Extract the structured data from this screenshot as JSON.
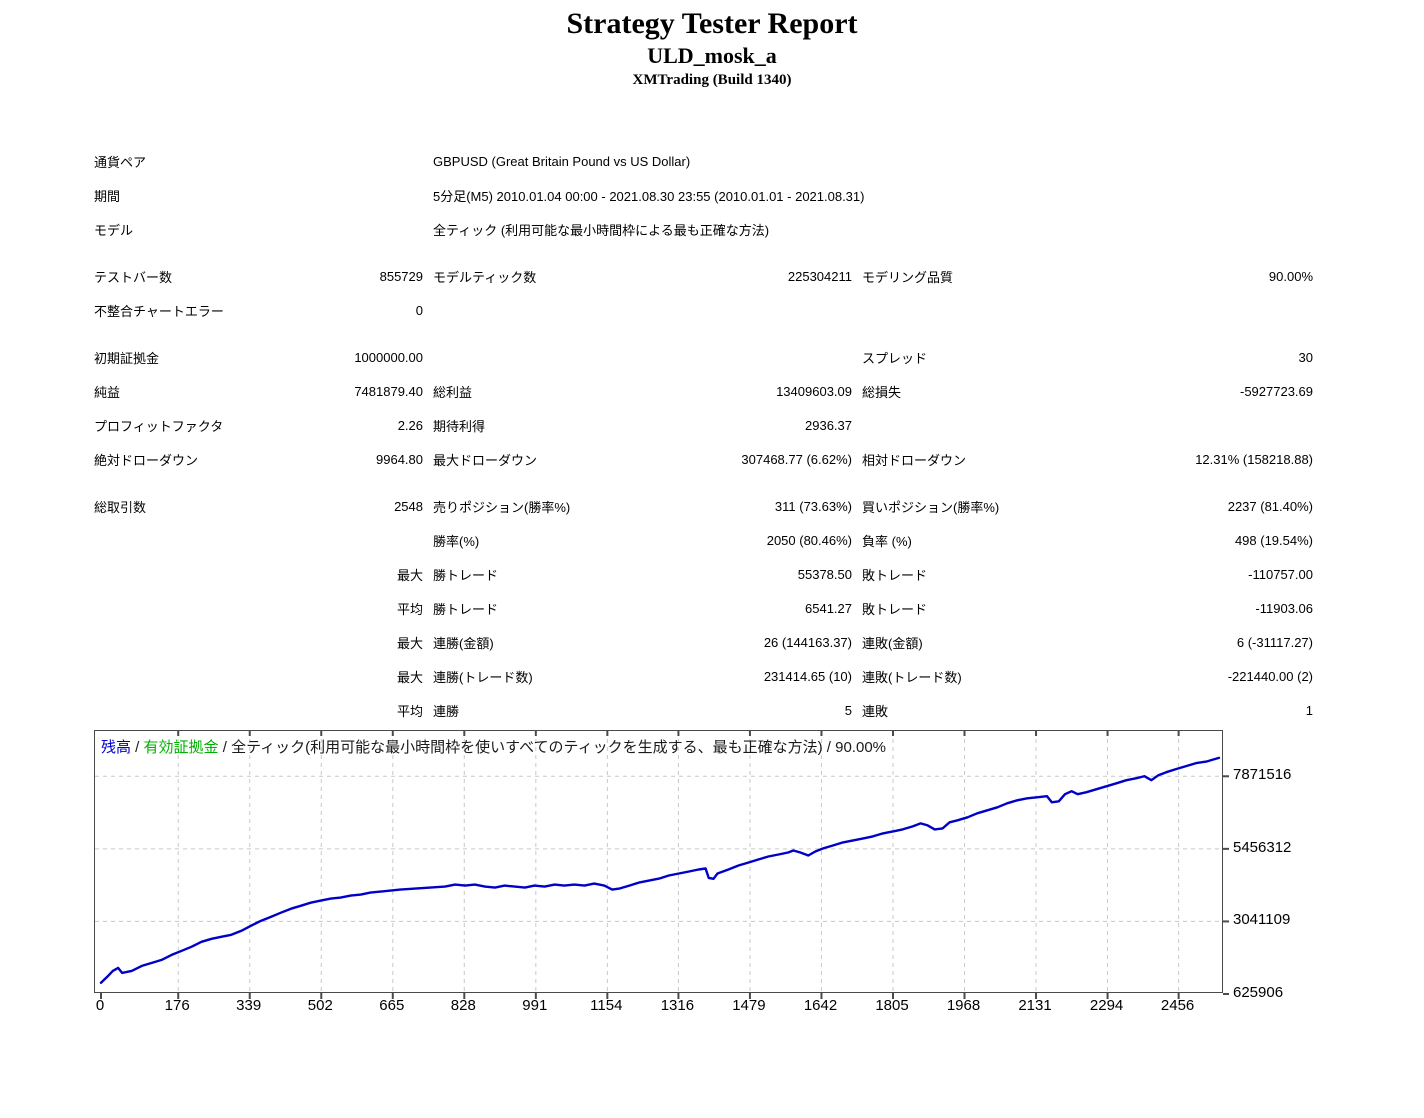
{
  "header": {
    "title": "Strategy Tester Report",
    "ea_name": "ULD_mosk_a",
    "broker": "XMTrading (Build 1340)"
  },
  "table": {
    "rows": [
      {
        "c1l": "通貨ペア",
        "wide": "GBPUSD (Great Britain Pound vs US Dollar)"
      },
      {
        "c1l": "期間",
        "wide": "5分足(M5) 2010.01.04 00:00 - 2021.08.30 23:55 (2010.01.01 - 2021.08.31)"
      },
      {
        "c1l": "モデル",
        "wide": "全ティック (利用可能な最小時間枠による最も正確な方法)"
      },
      {
        "c1l": "テストバー数",
        "c1v": "855729",
        "c2l": "モデルティック数",
        "c2v": "225304211",
        "c3l": "モデリング品質",
        "c3v": "90.00%"
      },
      {
        "c1l": "不整合チャートエラー",
        "c1v": "0",
        "c2l": "",
        "c2v": "",
        "c3l": "",
        "c3v": ""
      },
      {
        "c1l": "初期証拠金",
        "c1v": "1000000.00",
        "c2l": "",
        "c2v": "",
        "c3l": "スプレッド",
        "c3v": "30"
      },
      {
        "c1l": "純益",
        "c1v": "7481879.40",
        "c2l": "総利益",
        "c2v": "13409603.09",
        "c3l": "総損失",
        "c3v": "-5927723.69"
      },
      {
        "c1l": "プロフィットファクタ",
        "c1v": "2.26",
        "c2l": "期待利得",
        "c2v": "2936.37",
        "c3l": "",
        "c3v": ""
      },
      {
        "c1l": "絶対ドローダウン",
        "c1v": "9964.80",
        "c2l": "最大ドローダウン",
        "c2v": "307468.77 (6.62%)",
        "c3l": "相対ドローダウン",
        "c3v": "12.31% (158218.88)"
      },
      {
        "c1l": "総取引数",
        "c1v": "2548",
        "c2l": "売りポジション(勝率%)",
        "c2v": "311 (73.63%)",
        "c3l": "買いポジション(勝率%)",
        "c3v": "2237 (81.40%)"
      },
      {
        "c1l": "",
        "c1v": "",
        "c2l": "勝率(%)",
        "c2v": "2050 (80.46%)",
        "c3l": "負率 (%)",
        "c3v": "498 (19.54%)"
      },
      {
        "c1l": "",
        "c1v": "最大",
        "c2l": "勝トレード",
        "c2v": "55378.50",
        "c3l": "敗トレード",
        "c3v": "-110757.00"
      },
      {
        "c1l": "",
        "c1v": "平均",
        "c2l": "勝トレード",
        "c2v": "6541.27",
        "c3l": "敗トレード",
        "c3v": "-11903.06"
      },
      {
        "c1l": "",
        "c1v": "最大",
        "c2l": "連勝(金額)",
        "c2v": "26 (144163.37)",
        "c3l": "連敗(金額)",
        "c3v": "6 (-31117.27)"
      },
      {
        "c1l": "",
        "c1v": "最大",
        "c2l": "連勝(トレード数)",
        "c2v": "231414.65 (10)",
        "c3l": "連敗(トレード数)",
        "c3v": "-221440.00 (2)"
      },
      {
        "c1l": "",
        "c1v": "平均",
        "c2l": "連勝",
        "c2v": "5",
        "c3l": "連敗",
        "c3v": "1"
      }
    ]
  },
  "legend": {
    "balance_label": "残高",
    "equity_label": "有効証拠金",
    "separator": " / ",
    "model_label": "全ティック(利用可能な最小時間枠を使いすべてのティックを生成する、最も正確な方法)",
    "quality": "90.00%"
  },
  "colors": {
    "balance_line": "#0000c8",
    "balance_legend": "#0000cc",
    "equity_legend": "#00b000",
    "grid": "#c9c9c9",
    "axis": "#4a4a4a"
  },
  "chart_data": {
    "type": "line",
    "title": "残高 / 有効証拠金 / 全ティック(利用可能な最小時間枠を使いすべてのティックを生成する、最も正確な方法) / 90.00%",
    "xlabel": "",
    "ylabel": "",
    "x_ticks": [
      0,
      176,
      339,
      502,
      665,
      828,
      991,
      1154,
      1316,
      1479,
      1642,
      1805,
      1968,
      2131,
      2294,
      2456
    ],
    "y_ticks": [
      625906,
      3041109,
      5456312,
      7871516
    ],
    "x_range": [
      0,
      2548
    ],
    "y_range": [
      625906,
      9378278
    ],
    "grid": true,
    "legend_position": "top-left-inside",
    "series": [
      {
        "name": "残高",
        "color": "#0000c8",
        "points": [
          [
            0,
            1000000
          ],
          [
            14,
            1193808
          ],
          [
            27,
            1394244
          ],
          [
            39,
            1494462
          ],
          [
            48,
            1327432
          ],
          [
            70,
            1394244
          ],
          [
            93,
            1561274
          ],
          [
            116,
            1661492
          ],
          [
            138,
            1761710
          ],
          [
            161,
            1928740
          ],
          [
            184,
            2062364
          ],
          [
            206,
            2195988
          ],
          [
            229,
            2363018
          ],
          [
            252,
            2463236
          ],
          [
            274,
            2530048
          ],
          [
            297,
            2596860
          ],
          [
            320,
            2730484
          ],
          [
            342,
            2897514
          ],
          [
            365,
            3064544
          ],
          [
            388,
            3198168
          ],
          [
            410,
            3331792
          ],
          [
            433,
            3465416
          ],
          [
            456,
            3565634
          ],
          [
            478,
            3665852
          ],
          [
            501,
            3732664
          ],
          [
            524,
            3799476
          ],
          [
            546,
            3832882
          ],
          [
            569,
            3899694
          ],
          [
            592,
            3933100
          ],
          [
            614,
            3999912
          ],
          [
            637,
            4033318
          ],
          [
            660,
            4066724
          ],
          [
            682,
            4100130
          ],
          [
            716,
            4133536
          ],
          [
            750,
            4166942
          ],
          [
            784,
            4200348
          ],
          [
            807,
            4267160
          ],
          [
            830,
            4233754
          ],
          [
            852,
            4267160
          ],
          [
            875,
            4200348
          ],
          [
            898,
            4166942
          ],
          [
            920,
            4233754
          ],
          [
            943,
            4200348
          ],
          [
            966,
            4166942
          ],
          [
            988,
            4233754
          ],
          [
            1011,
            4200348
          ],
          [
            1034,
            4267160
          ],
          [
            1056,
            4233754
          ],
          [
            1079,
            4267160
          ],
          [
            1102,
            4233754
          ],
          [
            1124,
            4300566
          ],
          [
            1147,
            4233754
          ],
          [
            1165,
            4100130
          ],
          [
            1181,
            4133536
          ],
          [
            1204,
            4233754
          ],
          [
            1226,
            4333972
          ],
          [
            1249,
            4400784
          ],
          [
            1272,
            4467596
          ],
          [
            1294,
            4567814
          ],
          [
            1317,
            4634626
          ],
          [
            1340,
            4701438
          ],
          [
            1362,
            4768250
          ],
          [
            1378,
            4801656
          ],
          [
            1385,
            4491000
          ],
          [
            1396,
            4460000
          ],
          [
            1405,
            4634626
          ],
          [
            1430,
            4768250
          ],
          [
            1453,
            4901874
          ],
          [
            1476,
            5002092
          ],
          [
            1498,
            5102310
          ],
          [
            1521,
            5202528
          ],
          [
            1544,
            5269340
          ],
          [
            1566,
            5336152
          ],
          [
            1578,
            5402964
          ],
          [
            1594,
            5336152
          ],
          [
            1612,
            5235934
          ],
          [
            1628,
            5369558
          ],
          [
            1646,
            5469776
          ],
          [
            1669,
            5569994
          ],
          [
            1691,
            5670212
          ],
          [
            1714,
            5737024
          ],
          [
            1737,
            5803836
          ],
          [
            1759,
            5870648
          ],
          [
            1782,
            5970866
          ],
          [
            1805,
            6037678
          ],
          [
            1827,
            6104490
          ],
          [
            1850,
            6204708
          ],
          [
            1868,
            6304926
          ],
          [
            1884,
            6238114
          ],
          [
            1900,
            6104490
          ],
          [
            1918,
            6137896
          ],
          [
            1934,
            6338332
          ],
          [
            1952,
            6405144
          ],
          [
            1975,
            6505362
          ],
          [
            1997,
            6638986
          ],
          [
            2020,
            6739204
          ],
          [
            2043,
            6839422
          ],
          [
            2065,
            6973046
          ],
          [
            2088,
            7073264
          ],
          [
            2111,
            7140076
          ],
          [
            2133,
            7173482
          ],
          [
            2156,
            7206888
          ],
          [
            2167,
            7006452
          ],
          [
            2183,
            7039858
          ],
          [
            2197,
            7273700
          ],
          [
            2212,
            7373918
          ],
          [
            2226,
            7273700
          ],
          [
            2246,
            7340512
          ],
          [
            2269,
            7440730
          ],
          [
            2292,
            7540948
          ],
          [
            2315,
            7641166
          ],
          [
            2337,
            7741384
          ],
          [
            2360,
            7808196
          ],
          [
            2378,
            7875008
          ],
          [
            2394,
            7741384
          ],
          [
            2410,
            7908414
          ],
          [
            2428,
            8008632
          ],
          [
            2450,
            8108850
          ],
          [
            2473,
            8209068
          ],
          [
            2496,
            8309286
          ],
          [
            2519,
            8359286
          ],
          [
            2535,
            8429504
          ],
          [
            2548,
            8481879
          ]
        ]
      }
    ]
  }
}
